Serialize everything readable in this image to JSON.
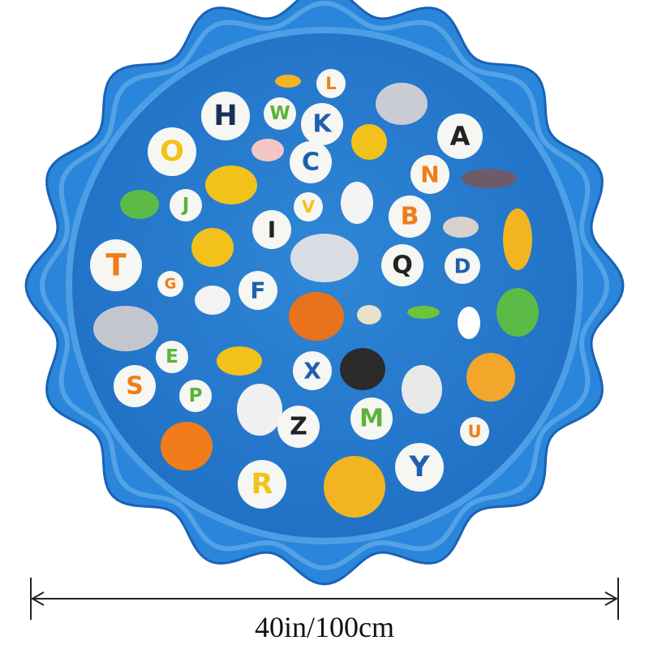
{
  "letters": [
    "H",
    "W",
    "L",
    "K",
    "A",
    "O",
    "C",
    "N",
    "J",
    "V",
    "B",
    "I",
    "T",
    "Q",
    "D",
    "G",
    "F",
    "E",
    "X",
    "S",
    "P",
    "Z",
    "M",
    "U",
    "R",
    "Y"
  ],
  "dimension_label": "40in/100cm"
}
